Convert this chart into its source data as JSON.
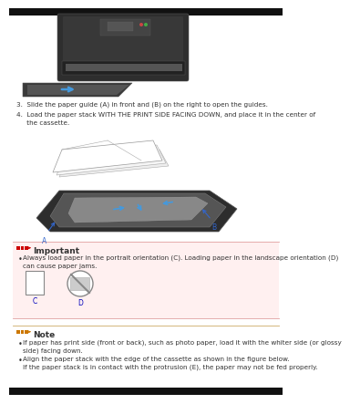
{
  "page_bg": "#ffffff",
  "step3_text": "3.  Slide the paper guide (A) in front and (B) on the right to open the guides.",
  "step4_line1": "4.  Load the paper stack WITH THE PRINT SIDE FACING DOWN, and place it in the center of",
  "step4_line2": "     the cassette.",
  "important_label": "Important",
  "important_bg": "#fff0f0",
  "important_bullet": "Always load paper in the portrait orientation (C). Loading paper in the landscape orientation (D)",
  "important_bullet2": "can cause paper jams.",
  "label_c": "C",
  "label_d": "D",
  "label_color": "#0000bb",
  "note_label": "Note",
  "note_bullet1a": "If paper has print side (front or back), such as photo paper, load it with the whiter side (or glossy",
  "note_bullet1b": "side) facing down.",
  "note_bullet2": "Align the paper stack with the edge of the cassette as shown in the figure below.",
  "note_sub": "If the paper stack is in contact with the protrusion (E), the paper may not be fed properly.",
  "text_color": "#333333",
  "text_size": 5.2,
  "red_icon": "#cc0000",
  "orange_icon": "#cc7700"
}
